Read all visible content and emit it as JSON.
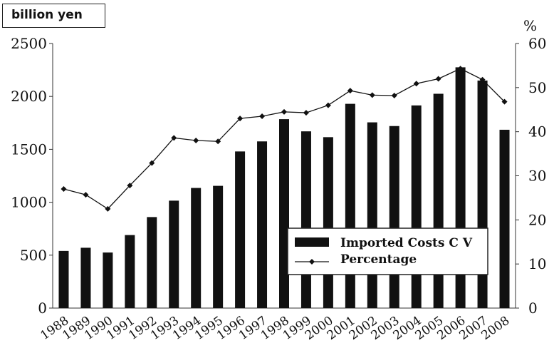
{
  "chart_data": {
    "type": "bar",
    "y_left_unit": "billion yen",
    "y_right_unit": "%",
    "categories": [
      "1988",
      "1989",
      "1990",
      "1991",
      "1992",
      "1993",
      "1994",
      "1995",
      "1996",
      "1997",
      "1998",
      "1999",
      "2000",
      "2001",
      "2002",
      "2003",
      "2004",
      "2005",
      "2006",
      "2007",
      "2008"
    ],
    "series": [
      {
        "name": "Imported Costs C V",
        "kind": "bar",
        "axis": "left",
        "values": [
          540,
          570,
          525,
          690,
          860,
          1015,
          1135,
          1155,
          1480,
          1575,
          1785,
          1670,
          1615,
          1930,
          1755,
          1720,
          1915,
          2025,
          2275,
          2150,
          1685
        ]
      },
      {
        "name": "Percentage",
        "kind": "line",
        "axis": "right",
        "values": [
          27,
          25.7,
          22.5,
          27.8,
          32.9,
          38.6,
          38,
          37.8,
          43,
          43.5,
          44.5,
          44.3,
          46,
          49.3,
          48.3,
          48.2,
          50.9,
          52,
          54.3,
          51.8,
          46.8
        ]
      }
    ],
    "ylim_left": [
      0,
      2500
    ],
    "yticks_left": [
      0,
      500,
      1000,
      1500,
      2000,
      2500
    ],
    "ylim_right": [
      0,
      60
    ],
    "yticks_right": [
      0,
      10,
      20,
      30,
      40,
      50,
      60
    ],
    "legend_position": "lower-right",
    "colors": {
      "bar": "#111111",
      "line": "#111111"
    }
  }
}
